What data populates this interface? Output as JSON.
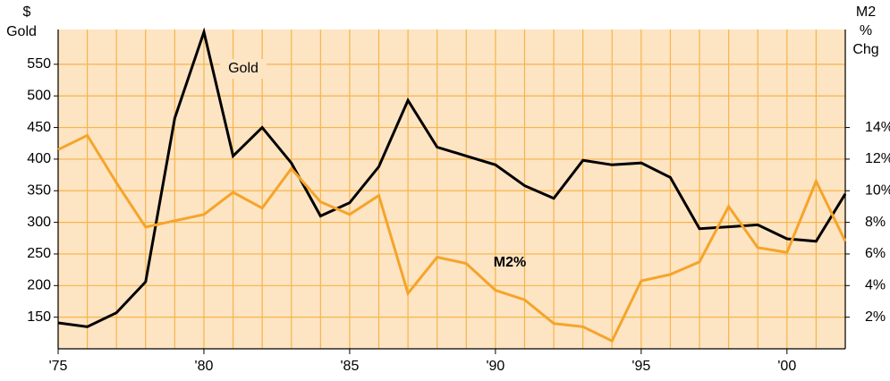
{
  "chart_data": {
    "type": "line",
    "ylabel": [
      "$",
      "Gold"
    ],
    "y2label": [
      "M2",
      "%",
      "Chg"
    ],
    "x": [
      1975,
      1976,
      1977,
      1978,
      1979,
      1980,
      1981,
      1982,
      1983,
      1984,
      1985,
      1986,
      1987,
      1988,
      1989,
      1990,
      1991,
      1992,
      1993,
      1994,
      1995,
      1996,
      1997,
      1998,
      1999,
      2000,
      2001,
      2002
    ],
    "xlim": [
      1975,
      2002
    ],
    "xticks": [
      {
        "value": 1975,
        "label": "'75"
      },
      {
        "value": 1980,
        "label": "'80"
      },
      {
        "value": 1985,
        "label": "'85"
      },
      {
        "value": 1990,
        "label": "'90"
      },
      {
        "value": 1995,
        "label": "'95"
      },
      {
        "value": 2000,
        "label": "'00"
      }
    ],
    "ylim": [
      100,
      605
    ],
    "yticks": [
      150,
      200,
      250,
      300,
      350,
      400,
      450,
      500,
      550
    ],
    "y2lim": [
      0,
      20.2
    ],
    "y2ticks": [
      {
        "value": 2,
        "label": "2%"
      },
      {
        "value": 4,
        "label": "4%"
      },
      {
        "value": 6,
        "label": "6%"
      },
      {
        "value": 8,
        "label": "8%"
      },
      {
        "value": 10,
        "label": "10%"
      },
      {
        "value": 12,
        "label": "12%"
      },
      {
        "value": 14,
        "label": "14%"
      }
    ],
    "grid": true,
    "background": "#fde4c3",
    "grid_color": "#f6b54a",
    "series": [
      {
        "name": "Gold",
        "color": "#000000",
        "axis": "y",
        "values": [
          141,
          135,
          157,
          206,
          465,
          601,
          405,
          450,
          394,
          310,
          331,
          388,
          493,
          419,
          405,
          391,
          358,
          338,
          398,
          391,
          394,
          371,
          290,
          293,
          296,
          274,
          270,
          345
        ]
      },
      {
        "name": "M2%",
        "color": "#f5a42a",
        "axis": "y2",
        "values": [
          12.6,
          13.5,
          10.5,
          7.7,
          8.1,
          8.5,
          9.9,
          8.9,
          11.4,
          9.3,
          8.5,
          9.7,
          3.5,
          5.8,
          5.4,
          3.7,
          3.1,
          1.6,
          1.4,
          0.5,
          4.3,
          4.7,
          5.5,
          9.0,
          6.4,
          6.1,
          10.6,
          6.8
        ]
      }
    ]
  }
}
